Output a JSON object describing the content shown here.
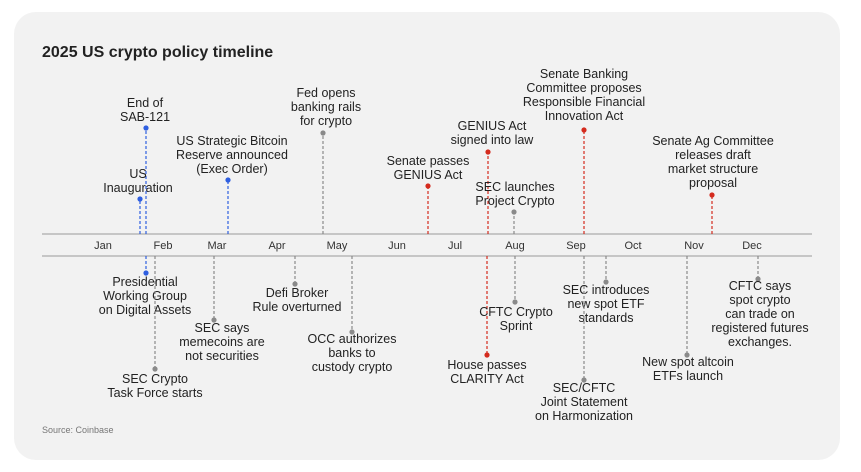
{
  "title": "2025 US crypto policy timeline",
  "source": "Source: Coinbase",
  "months": [
    "Jan",
    "Feb",
    "Mar",
    "Apr",
    "May",
    "Jun",
    "Jul",
    "Aug",
    "Sep",
    "Oct",
    "Nov",
    "Dec"
  ],
  "events": [
    {
      "lines": [
        "End of",
        "SAB-121"
      ],
      "color": "#2f5fe0"
    },
    {
      "lines": [
        "US",
        "Inauguration"
      ],
      "color": "#2f5fe0"
    },
    {
      "lines": [
        "US Strategic Bitcoin",
        "Reserve announced",
        "(Exec Order)"
      ],
      "color": "#2f5fe0"
    },
    {
      "lines": [
        "Fed opens",
        "banking rails",
        "for crypto"
      ],
      "color": "#8a8a8a"
    },
    {
      "lines": [
        "Senate passes",
        "GENIUS Act"
      ],
      "color": "#d42b1e"
    },
    {
      "lines": [
        "GENIUS Act",
        "signed into law"
      ],
      "color": "#d42b1e"
    },
    {
      "lines": [
        "SEC launches",
        "Project Crypto"
      ],
      "color": "#8a8a8a"
    },
    {
      "lines": [
        "Senate Banking",
        "Committee proposes",
        "Responsible Financial",
        "Innovation Act"
      ],
      "color": "#d42b1e"
    },
    {
      "lines": [
        "Senate Ag Committee",
        "releases draft",
        "market structure",
        "proposal"
      ],
      "color": "#d42b1e"
    },
    {
      "lines": [
        "Presidential",
        "Working Group",
        "on Digital Assets"
      ],
      "color": "#2f5fe0"
    },
    {
      "lines": [
        "SEC says",
        "memecoins are",
        "not securities"
      ],
      "color": "#8a8a8a"
    },
    {
      "lines": [
        "SEC Crypto",
        "Task Force starts"
      ],
      "color": "#8a8a8a"
    },
    {
      "lines": [
        "Defi Broker",
        "Rule overturned"
      ],
      "color": "#8a8a8a"
    },
    {
      "lines": [
        "OCC authorizes",
        "banks to",
        "custody crypto"
      ],
      "color": "#8a8a8a"
    },
    {
      "lines": [
        "House passes",
        "CLARITY Act"
      ],
      "color": "#d42b1e"
    },
    {
      "lines": [
        "CFTC Crypto",
        "Sprint"
      ],
      "color": "#8a8a8a"
    },
    {
      "lines": [
        "SEC introduces",
        "new spot ETF",
        "standards"
      ],
      "color": "#8a8a8a"
    },
    {
      "lines": [
        "SEC/CFTC",
        "Joint Statement",
        "on Harmonization"
      ],
      "color": "#8a8a8a"
    },
    {
      "lines": [
        "New spot altcoin",
        "ETFs launch"
      ],
      "color": "#8a8a8a"
    },
    {
      "lines": [
        "CFTC says",
        "spot crypto",
        "can trade on",
        "registered futures",
        "exchanges."
      ],
      "color": "#8a8a8a"
    }
  ]
}
